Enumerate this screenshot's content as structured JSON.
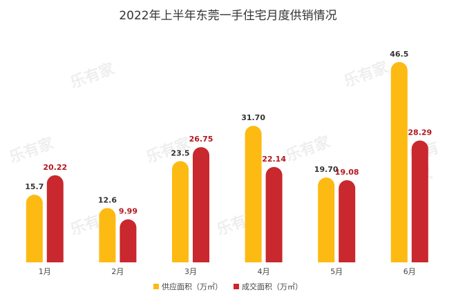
{
  "title": "2022年上半年东莞一手住宅月度供销情况",
  "watermark": "乐有家",
  "colors": {
    "supply": "#FDBA12",
    "sold": "#C8282E"
  },
  "chart_data": {
    "type": "bar",
    "title": "2022年上半年东莞一手住宅月度供销情况",
    "categories": [
      "1月",
      "2月",
      "3月",
      "4月",
      "5月",
      "6月"
    ],
    "series": [
      {
        "name": "供应面积（万㎡）",
        "values": [
          15.7,
          12.6,
          23.5,
          31.7,
          19.7,
          46.5
        ],
        "labels": [
          "15.7",
          "12.6",
          "23.5",
          "31.70",
          "19.70",
          "46.5"
        ]
      },
      {
        "name": "成交面积（万㎡）",
        "values": [
          20.22,
          9.99,
          26.75,
          22.14,
          19.08,
          28.29
        ],
        "labels": [
          "20.22",
          "9.99",
          "26.75",
          "22.14",
          "19.08",
          "28.29"
        ]
      }
    ],
    "ylim": [
      0,
      50
    ],
    "grid": false,
    "legend": "bottom"
  }
}
